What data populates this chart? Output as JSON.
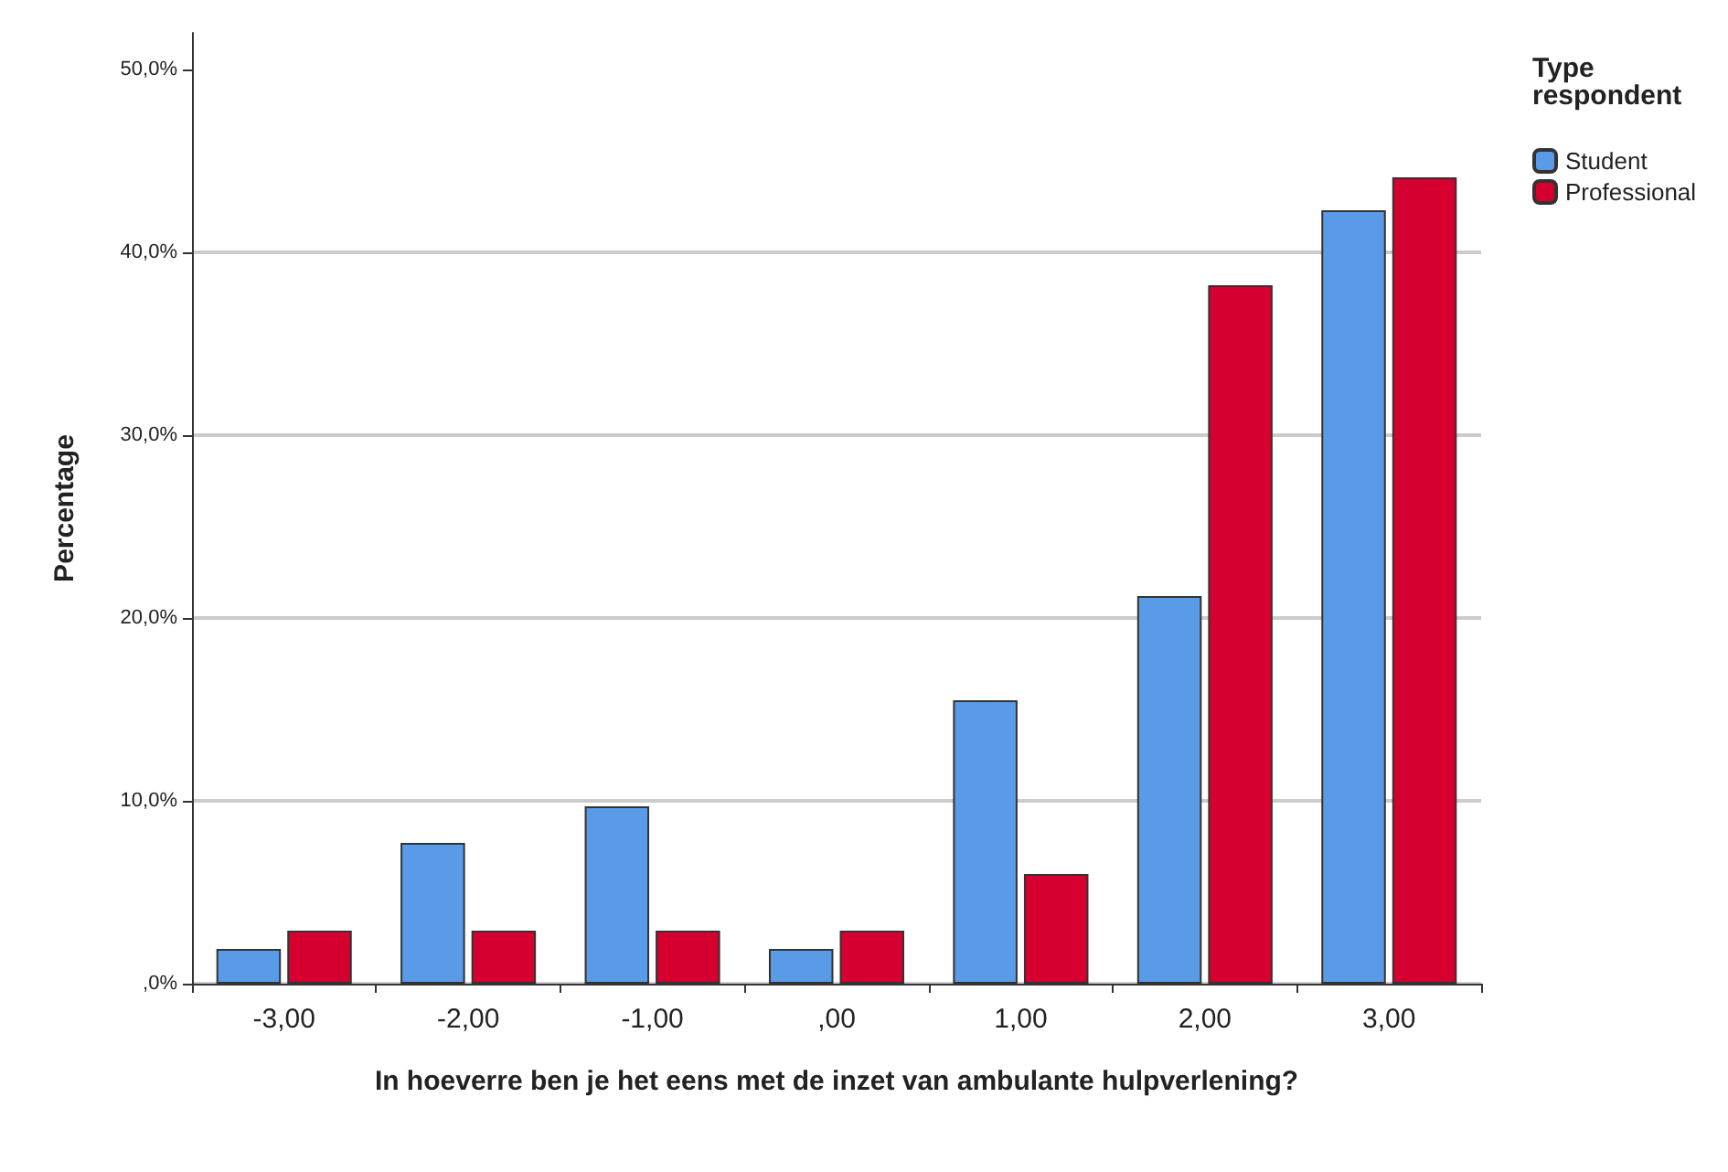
{
  "chart_data": {
    "type": "bar",
    "xlabel": "In hoeverre ben je het eens met de inzet van ambulante hulpverlening?",
    "ylabel": "Percentage",
    "legend_title": "Type respondent",
    "categories": [
      "-3,00",
      "-2,00",
      "-1,00",
      ",00",
      "1,00",
      "2,00",
      "3,00"
    ],
    "series": [
      {
        "name": "Student",
        "color": "#5a9be8",
        "values": [
          1.9,
          7.7,
          9.7,
          1.9,
          15.5,
          21.2,
          42.3
        ]
      },
      {
        "name": "Professional",
        "color": "#d5002f",
        "values": [
          2.9,
          2.9,
          2.9,
          2.9,
          6.0,
          38.2,
          44.1
        ]
      }
    ],
    "ylim": [
      0,
      52
    ],
    "yticks": [
      {
        "value": 0,
        "label": ",0%"
      },
      {
        "value": 10,
        "label": "10,0%"
      },
      {
        "value": 20,
        "label": "20,0%"
      },
      {
        "value": 30,
        "label": "30,0%"
      },
      {
        "value": 40,
        "label": "40,0%"
      },
      {
        "value": 50,
        "label": "50,0%"
      }
    ],
    "grid": "y",
    "legend": "top right"
  }
}
